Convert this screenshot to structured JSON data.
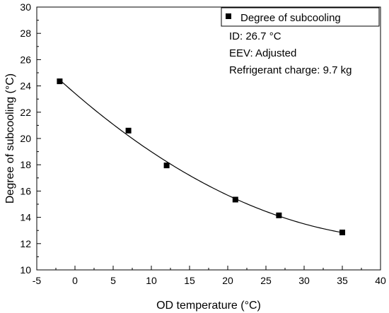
{
  "chart_data": {
    "type": "scatter",
    "xlabel": "OD temperature (°C)",
    "ylabel": "Degree of subcooling (°C)",
    "xlim": [
      -5,
      40
    ],
    "ylim": [
      10,
      30
    ],
    "xticks": [
      "-5",
      "0",
      "5",
      "10",
      "15",
      "20",
      "25",
      "30",
      "35",
      "40"
    ],
    "yticks": [
      "10",
      "12",
      "14",
      "16",
      "18",
      "20",
      "22",
      "24",
      "26",
      "28",
      "30"
    ],
    "grid": false,
    "legend_position": "top-right",
    "series": [
      {
        "name": "Degree of subcooling",
        "marker": "square",
        "color": "#000000",
        "points": [
          {
            "x": -2,
            "y": 24.35
          },
          {
            "x": 7,
            "y": 20.6
          },
          {
            "x": 12,
            "y": 17.95
          },
          {
            "x": 21,
            "y": 15.35
          },
          {
            "x": 26.7,
            "y": 14.15
          },
          {
            "x": 35,
            "y": 12.85
          }
        ]
      }
    ],
    "fit_curve": {
      "type": "polynomial",
      "order": 2,
      "color": "#000000",
      "x_range": [
        -2,
        35
      ]
    },
    "annotations": [
      "ID: 26.7 °C",
      "EEV: Adjusted",
      "Refrigerant charge: 9.7 kg"
    ]
  }
}
